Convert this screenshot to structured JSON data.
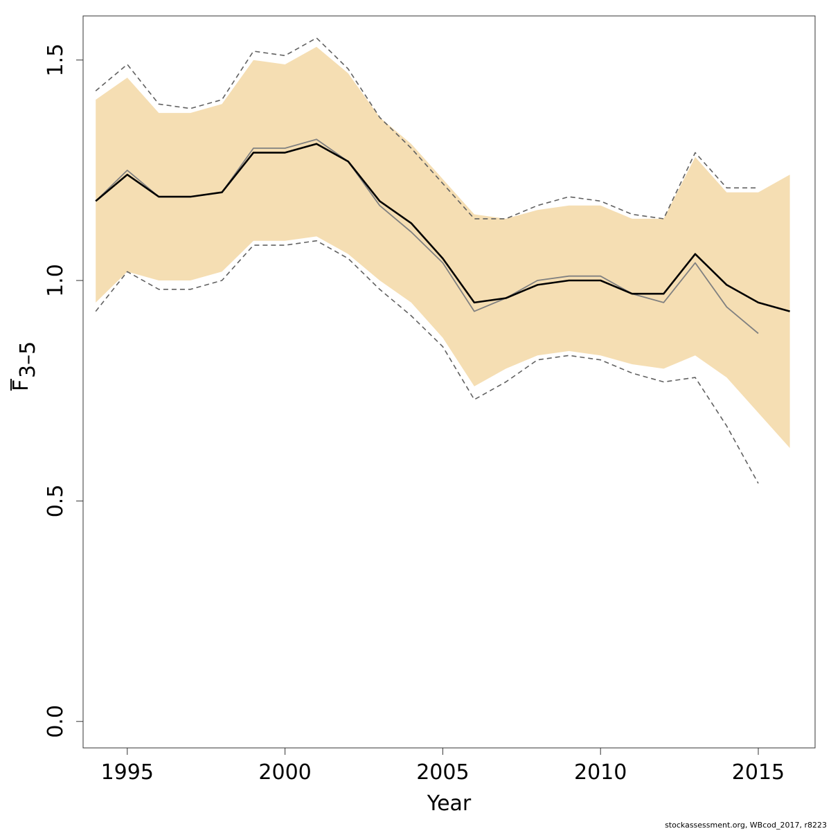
{
  "chart_data": {
    "type": "line",
    "xlabel": "Year",
    "ylabel": {
      "main": "F",
      "subscript": "3–5",
      "overline": true
    },
    "xlim": [
      1993.6,
      2016.8
    ],
    "ylim": [
      -0.06,
      1.6
    ],
    "x_ticks": [
      1995,
      2000,
      2005,
      2010,
      2015
    ],
    "y_ticks": [
      0.0,
      0.5,
      1.0,
      1.5
    ],
    "y_tick_labels": [
      "0.0",
      "0.5",
      "1.0",
      "1.5"
    ],
    "grid": false,
    "legend": "none",
    "colors": {
      "band": "#f5deb3",
      "main_line": "#000000",
      "prev_line": "#808080",
      "prev_ci": "#606060"
    },
    "series": [
      {
        "role": "band",
        "x": [
          1994,
          1995,
          1996,
          1997,
          1998,
          1999,
          2000,
          2001,
          2002,
          2003,
          2004,
          2005,
          2006,
          2007,
          2008,
          2009,
          2010,
          2011,
          2012,
          2013,
          2014,
          2015,
          2016
        ],
        "upper": [
          1.41,
          1.46,
          1.38,
          1.38,
          1.4,
          1.5,
          1.49,
          1.53,
          1.47,
          1.37,
          1.31,
          1.23,
          1.15,
          1.14,
          1.16,
          1.17,
          1.17,
          1.14,
          1.14,
          1.28,
          1.2,
          1.2,
          1.24
        ],
        "lower": [
          0.95,
          1.02,
          1.0,
          1.0,
          1.02,
          1.09,
          1.09,
          1.1,
          1.06,
          1.0,
          0.95,
          0.87,
          0.76,
          0.8,
          0.83,
          0.84,
          0.83,
          0.81,
          0.8,
          0.83,
          0.78,
          0.7,
          0.62
        ]
      },
      {
        "role": "main",
        "x": [
          1994,
          1995,
          1996,
          1997,
          1998,
          1999,
          2000,
          2001,
          2002,
          2003,
          2004,
          2005,
          2006,
          2007,
          2008,
          2009,
          2010,
          2011,
          2012,
          2013,
          2014,
          2015,
          2016
        ],
        "values": [
          1.18,
          1.24,
          1.19,
          1.19,
          1.2,
          1.29,
          1.29,
          1.31,
          1.27,
          1.18,
          1.13,
          1.05,
          0.95,
          0.96,
          0.99,
          1.0,
          1.0,
          0.97,
          0.97,
          1.06,
          0.99,
          0.95,
          0.93
        ]
      },
      {
        "role": "previous",
        "x": [
          1994,
          1995,
          1996,
          1997,
          1998,
          1999,
          2000,
          2001,
          2002,
          2003,
          2004,
          2005,
          2006,
          2007,
          2008,
          2009,
          2010,
          2011,
          2012,
          2013,
          2014,
          2015
        ],
        "values": [
          1.18,
          1.25,
          1.19,
          1.19,
          1.2,
          1.3,
          1.3,
          1.32,
          1.27,
          1.17,
          1.11,
          1.04,
          0.93,
          0.96,
          1.0,
          1.01,
          1.01,
          0.97,
          0.95,
          1.04,
          0.94,
          0.88
        ]
      },
      {
        "role": "previous_upper",
        "x": [
          1994,
          1995,
          1996,
          1997,
          1998,
          1999,
          2000,
          2001,
          2002,
          2003,
          2004,
          2005,
          2006,
          2007,
          2008,
          2009,
          2010,
          2011,
          2012,
          2013,
          2014,
          2015
        ],
        "values": [
          1.43,
          1.49,
          1.4,
          1.39,
          1.41,
          1.52,
          1.51,
          1.55,
          1.48,
          1.37,
          1.3,
          1.22,
          1.14,
          1.14,
          1.17,
          1.19,
          1.18,
          1.15,
          1.14,
          1.29,
          1.21,
          1.21
        ]
      },
      {
        "role": "previous_lower",
        "x": [
          1994,
          1995,
          1996,
          1997,
          1998,
          1999,
          2000,
          2001,
          2002,
          2003,
          2004,
          2005,
          2006,
          2007,
          2008,
          2009,
          2010,
          2011,
          2012,
          2013,
          2014,
          2015
        ],
        "values": [
          0.93,
          1.02,
          0.98,
          0.98,
          1.0,
          1.08,
          1.08,
          1.09,
          1.05,
          0.98,
          0.92,
          0.85,
          0.73,
          0.77,
          0.82,
          0.83,
          0.82,
          0.79,
          0.77,
          0.78,
          0.67,
          0.54
        ]
      }
    ]
  },
  "footer": "stockassessment.org, WBcod_2017, r8223"
}
